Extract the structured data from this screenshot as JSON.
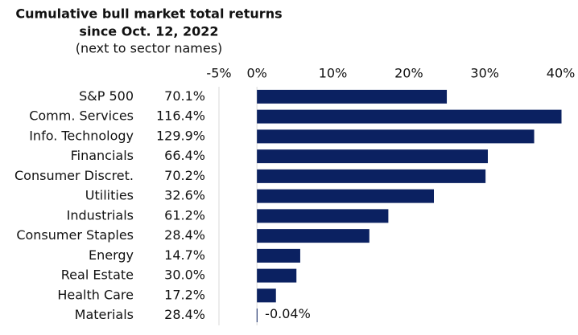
{
  "chart_data": {
    "type": "bar",
    "orientation": "horizontal",
    "title": [
      "Cumulative bull market total returns",
      "since Oct. 12, 2022"
    ],
    "subtitle": "(next to sector names)",
    "categories": [
      "S&P 500",
      "Comm. Services",
      "Info. Technology",
      "Financials",
      "Consumer Discret.",
      "Utilities",
      "Industrials",
      "Consumer Staples",
      "Energy",
      "Real Estate",
      "Health Care",
      "Materials"
    ],
    "bull_market_returns": [
      "70.1%",
      "116.4%",
      "129.9%",
      "66.4%",
      "70.2%",
      "32.6%",
      "61.2%",
      "28.4%",
      "14.7%",
      "30.0%",
      "17.2%",
      "28.4%"
    ],
    "values": [
      25,
      40.1,
      36.5,
      30.4,
      30.1,
      23.3,
      17.3,
      14.8,
      5.7,
      5.2,
      2.5,
      -0.04
    ],
    "value_labels": [
      null,
      null,
      null,
      null,
      null,
      null,
      null,
      null,
      null,
      null,
      null,
      "-0.04%"
    ],
    "color": "#0b2161",
    "xlim": [
      -5,
      41
    ],
    "xticks": [
      {
        "value": -5,
        "label": "-5%"
      },
      {
        "value": 0,
        "label": "0%"
      },
      {
        "value": 10,
        "label": "10%"
      },
      {
        "value": 20,
        "label": "20%"
      },
      {
        "value": 30,
        "label": "30%"
      },
      {
        "value": 40,
        "label": "40%"
      }
    ]
  }
}
